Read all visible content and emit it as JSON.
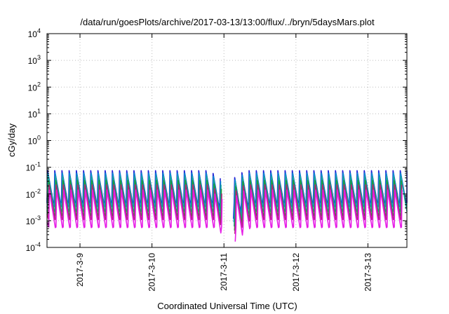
{
  "chart_data": {
    "type": "line",
    "title": "/data/run/goesPlots/archive/2017-03-13/13:00/flux/../bryn/5daysMars.plot",
    "xlabel": "Coordinated Universal Time (UTC)",
    "ylabel": "cGy/day",
    "y_scale": "log",
    "ylim": [
      0.0001,
      10000
    ],
    "y_ticks": [
      {
        "value": 0.0001,
        "base": "10",
        "exp": "-4"
      },
      {
        "value": 0.001,
        "base": "10",
        "exp": "-3"
      },
      {
        "value": 0.01,
        "base": "10",
        "exp": "-2"
      },
      {
        "value": 0.1,
        "base": "10",
        "exp": "-1"
      },
      {
        "value": 1,
        "base": "10",
        "exp": "0"
      },
      {
        "value": 10,
        "base": "10",
        "exp": "1"
      },
      {
        "value": 100,
        "base": "10",
        "exp": "2"
      },
      {
        "value": 1000,
        "base": "10",
        "exp": "3"
      },
      {
        "value": 10000,
        "base": "10",
        "exp": "4"
      }
    ],
    "xlim": [
      "2017-03-08 13:00",
      "2017-03-13 13:00"
    ],
    "x_ticks": [
      "2017-3-9",
      "2017-3-10",
      "2017-3-11",
      "2017-3-12",
      "2017-3-13"
    ],
    "grid": true,
    "legend": "none",
    "pattern": {
      "period_hours": 2.4,
      "anomaly_hours": 59.8,
      "gap_hours": [
        58.5,
        61.5
      ]
    },
    "series": [
      {
        "color": "#1f1fd6",
        "peak": 0.075,
        "trough": 0.0045
      },
      {
        "color": "#0a8fd0",
        "peak": 0.06,
        "trough": 0.0033
      },
      {
        "color": "#1aa898",
        "peak": 0.045,
        "trough": 0.0022
      },
      {
        "color": "#1e9a3a",
        "peak": 0.032,
        "trough": 0.0015
      },
      {
        "color": "#b0237a",
        "peak": 0.022,
        "trough": 0.0011
      },
      {
        "color": "#e61ee6",
        "peak": 0.014,
        "trough": 0.00055
      }
    ]
  }
}
